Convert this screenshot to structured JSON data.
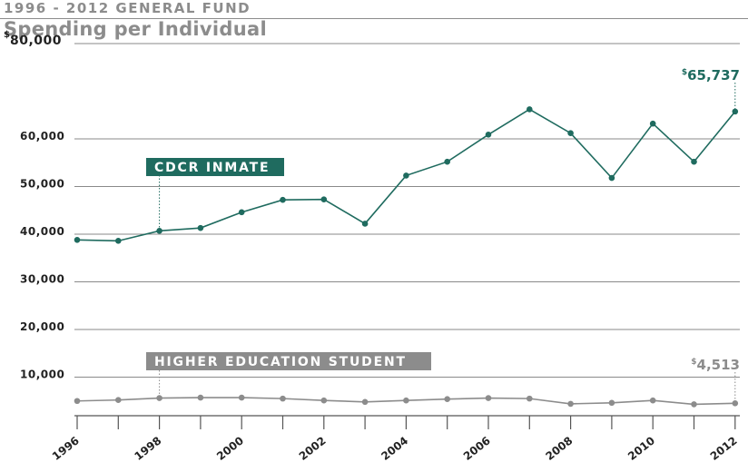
{
  "header": {
    "kicker": "1996 - 2012 GENERAL FUND",
    "title": "Spending per Individual"
  },
  "chart_data": {
    "type": "line",
    "x": [
      1996,
      1997,
      1998,
      1999,
      2000,
      2001,
      2002,
      2003,
      2004,
      2005,
      2006,
      2007,
      2008,
      2009,
      2010,
      2011,
      2012
    ],
    "x_tick_labels": [
      "1996",
      "1998",
      "2000",
      "2002",
      "2004",
      "2006",
      "2008",
      "2010",
      "2012"
    ],
    "y_tick_labels": [
      "10,000",
      "20,000",
      "30,000",
      "40,000",
      "50,000",
      "60,000",
      "80,000"
    ],
    "y_top_currency": "$",
    "ylim": [
      0,
      80000
    ],
    "grid": true,
    "series": [
      {
        "name": "CDCR INMATE",
        "color": "#1f6b5f",
        "values": [
          38800,
          38600,
          40700,
          41300,
          44600,
          47200,
          47300,
          42200,
          52300,
          55200,
          60900,
          66200,
          61200,
          51800,
          63200,
          55200,
          65737
        ],
        "end_label": {
          "currency": "$",
          "value": "65,737"
        }
      },
      {
        "name": "HIGHER EDUCATION STUDENT",
        "color": "#8c8c8c",
        "values": [
          5000,
          5200,
          5600,
          5700,
          5700,
          5500,
          5100,
          4800,
          5100,
          5400,
          5600,
          5500,
          4400,
          4600,
          5100,
          4300,
          4513
        ],
        "end_label": {
          "currency": "$",
          "value": "4,513"
        }
      }
    ]
  }
}
